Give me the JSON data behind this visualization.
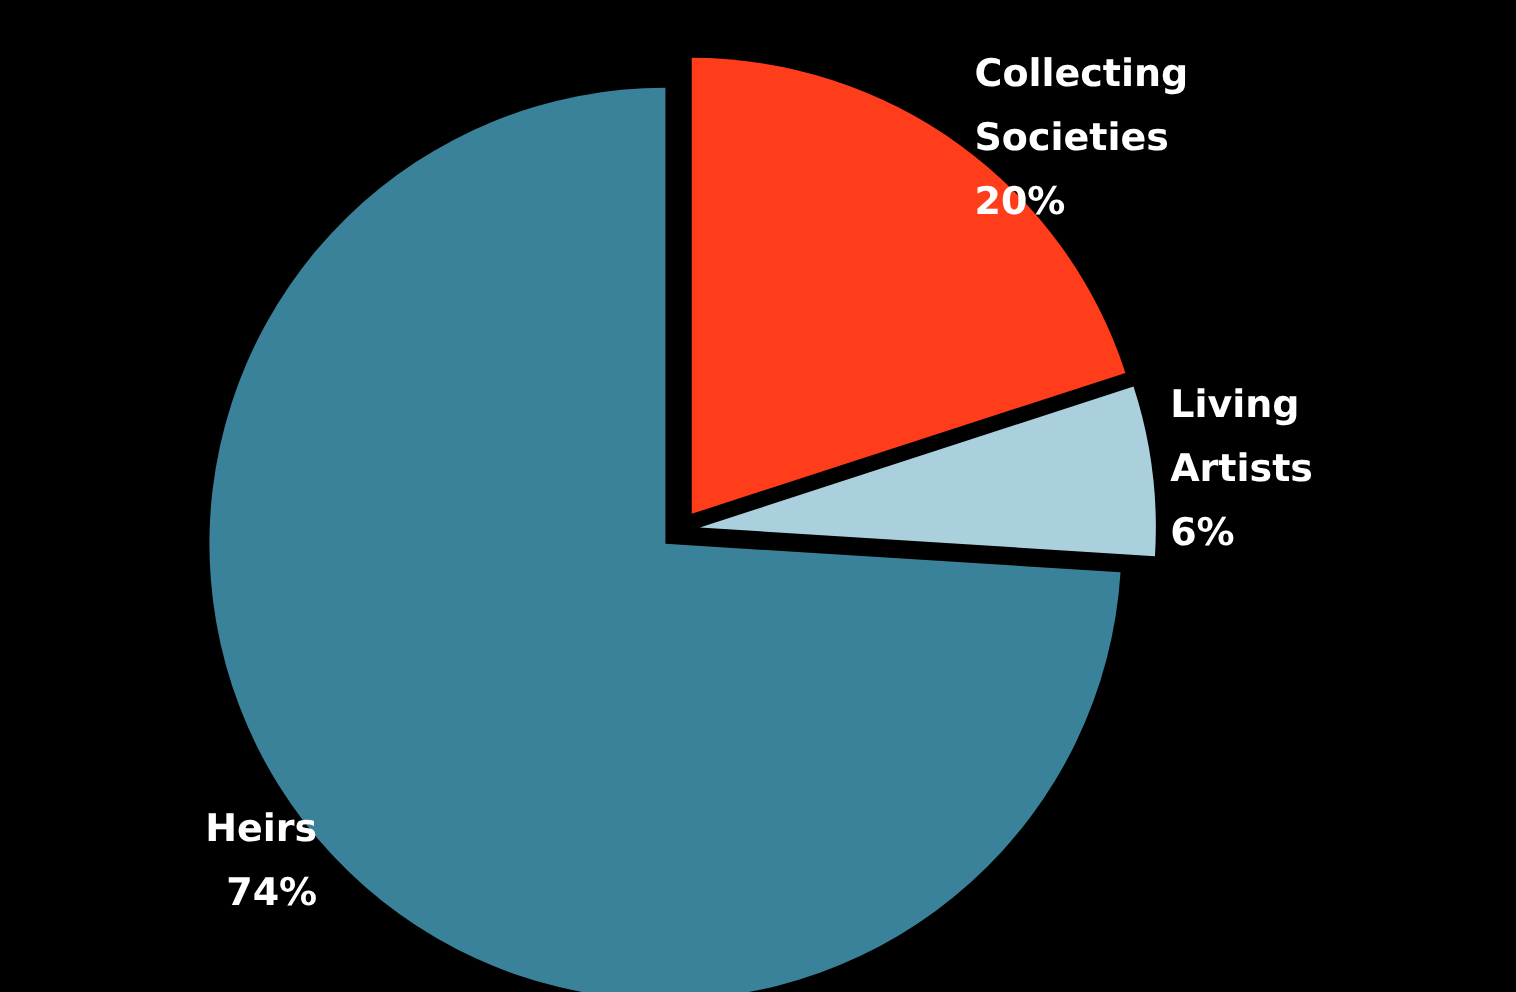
{
  "chart_data": {
    "type": "pie",
    "categories": [
      "Collecting Societies",
      "Living Artists",
      "Heirs"
    ],
    "values": [
      20,
      6,
      74
    ],
    "value_labels": [
      "20%",
      "6%",
      "74%"
    ],
    "colors": [
      "#ff3d1a",
      "#a9d0dc",
      "#3a8299"
    ]
  }
}
